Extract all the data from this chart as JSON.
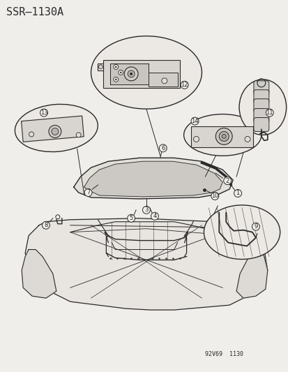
{
  "title": "SSR–1130A",
  "footer": "92V69  1130",
  "bg_color": "#f0eeeb",
  "line_color": "#2a2a2a",
  "title_fontsize": 11,
  "footer_fontsize": 6,
  "fig_width": 4.14,
  "fig_height": 5.33,
  "dpi": 100
}
